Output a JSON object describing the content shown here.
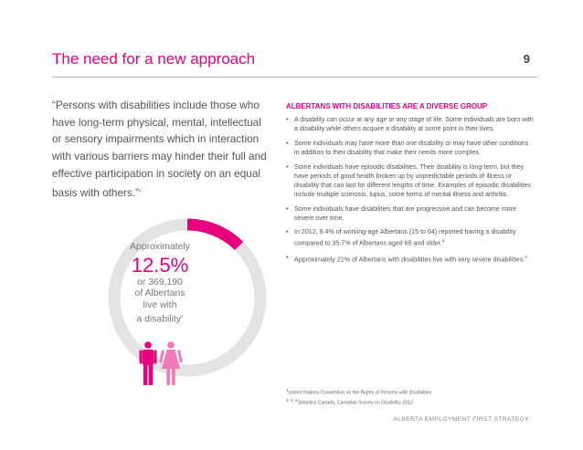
{
  "header": {
    "title": "The need for a new approach",
    "page_number": "9"
  },
  "quote": {
    "lines": [
      "“Persons with disabilities include those who",
      " have long-term physical, mental, intellectual",
      " or sensory impairments which in interaction",
      " with various barriers may hinder their full and",
      " effective participation in society on an equal",
      " basis with others.”",
      "1"
    ]
  },
  "stat": {
    "approx_label": "Approximately",
    "percent": "12.5%",
    "percent_value": 12.5,
    "line1": "or 369,190",
    "line2": "of Albertans",
    "line3": "live with",
    "line4": "a disability",
    "sup": "2"
  },
  "section": {
    "heading": "ALBERTANS WITH DISABILITIES ARE A DIVERSE GROUP",
    "bullets": [
      {
        "text": "A disability can occur at any age or any stage of life. Some individuals are born with a disability while others acquire a disability at some point in their lives.",
        "sup": ""
      },
      {
        "text": "Some individuals may have more than one disability or may have other conditions in addition to their disability that make their needs more complex.",
        "sup": ""
      },
      {
        "text": "Some individuals have episodic disabilities. Their disability is long-term, but they have periods of good health broken up by unpredictable periods of illness or disability that can last for different lengths of time. Examples of episodic disabilities include multiple sclerosis, lupus, some forms of mental illness and arthritis.",
        "sup": ""
      },
      {
        "text": "Some individuals have disabilities that are progressive and can become more severe over time.",
        "sup": ""
      },
      {
        "text": "In 2012, 9.4% of working-age Albertans (15 to 64) reported having a disability compared to 35.7% of Albertans aged 65 and older.",
        "sup": "3"
      },
      {
        "text": "Approximately 21% of Albertans with disabilities live with very severe disabilities.",
        "sup": "4"
      }
    ],
    "bullet_char": "•"
  },
  "footnotes": {
    "fn1_num": "1",
    "fn1_text": "United Nations Convention on the Rights of Persons with Disabilities",
    "fn2_num": "2, 3, 4",
    "fn2_text": "Statistics Canada, Canadian Survey on Disability, 2012"
  },
  "footer": {
    "text": "ALBERTA EMPLOYMENT FIRST STRATEGY"
  },
  "colors": {
    "accent": "#e6007e",
    "ring": "#e3e3e3",
    "male": "#e6007e",
    "female": "#f07ab8"
  },
  "icons": {
    "male": "male-figure-icon",
    "female": "female-figure-icon"
  }
}
